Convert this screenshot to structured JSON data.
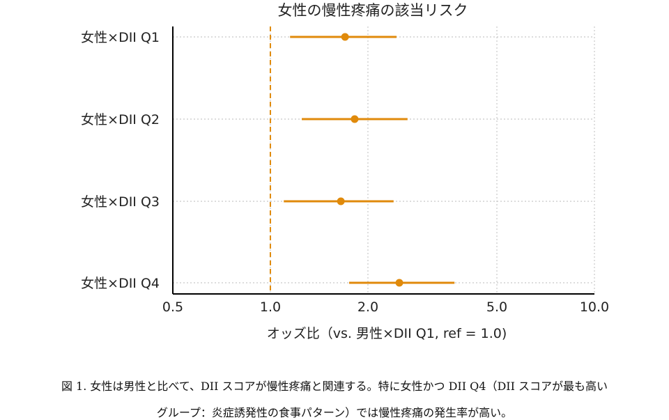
{
  "chart_data": {
    "type": "forest",
    "title": "女性の慢性疼痛の該当リスク",
    "xlabel": "オッズ比（vs. 男性×DII Q1, ref = 1.0)",
    "x_scale": "log",
    "xlim": [
      0.5,
      10.0
    ],
    "xticks": [
      0.5,
      1.0,
      2.0,
      5.0,
      10.0
    ],
    "xtick_labels": [
      "0.5",
      "1.0",
      "2.0",
      "5.0",
      "10.0"
    ],
    "reference_value": 1.0,
    "reference_line_style": "dashed",
    "grid": true,
    "rows": [
      {
        "label": "女性×DII Q1",
        "or": 1.7,
        "ci_low": 1.15,
        "ci_high": 2.45
      },
      {
        "label": "女性×DII Q2",
        "or": 1.82,
        "ci_low": 1.25,
        "ci_high": 2.65
      },
      {
        "label": "女性×DII Q3",
        "or": 1.65,
        "ci_low": 1.1,
        "ci_high": 2.4
      },
      {
        "label": "女性×DII Q4",
        "or": 2.5,
        "ci_low": 1.75,
        "ci_high": 3.7
      }
    ],
    "colors": {
      "series": "#E08A0B",
      "reference": "#E08A0B",
      "grid": "#c8c8c8",
      "axis": "#000000"
    }
  },
  "caption": {
    "line1": "図 1. 女性は男性と比べて、DII スコアが慢性疼痛と関連する。特に女性かつ DII Q4（DII スコアが最も高い",
    "line2": "グループ：炎症誘発性の食事パターン）では慢性疼痛の発生率が高い。"
  }
}
